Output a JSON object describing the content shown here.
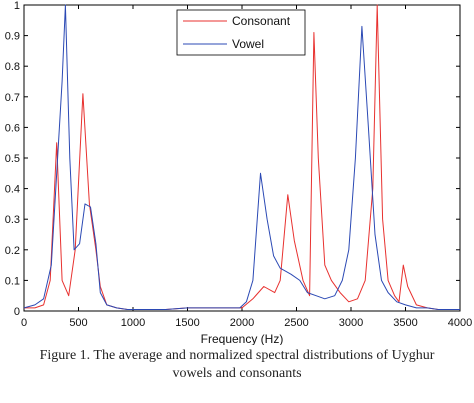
{
  "chart_data": {
    "type": "line",
    "title": "",
    "xlabel": "Frequency (Hz)",
    "ylabel": "",
    "xlim": [
      0,
      4000
    ],
    "ylim": [
      0,
      1
    ],
    "x_ticks": [
      "0",
      "500",
      "1000",
      "1500",
      "2000",
      "2500",
      "3000",
      "3500",
      "4000"
    ],
    "y_ticks": [
      "0",
      "0.1",
      "0.2",
      "0.3",
      "0.4",
      "0.5",
      "0.6",
      "0.7",
      "0.8",
      "0.9",
      "1"
    ],
    "legend_position": "top-center",
    "grid": false,
    "series": [
      {
        "name": "Consonant",
        "color": "#e8312f",
        "points": [
          [
            0,
            0.01
          ],
          [
            100,
            0.01
          ],
          [
            180,
            0.02
          ],
          [
            240,
            0.1
          ],
          [
            300,
            0.55
          ],
          [
            350,
            0.1
          ],
          [
            410,
            0.05
          ],
          [
            470,
            0.2
          ],
          [
            540,
            0.71
          ],
          [
            600,
            0.35
          ],
          [
            660,
            0.2
          ],
          [
            700,
            0.08
          ],
          [
            760,
            0.02
          ],
          [
            850,
            0.01
          ],
          [
            950,
            0.005
          ],
          [
            1100,
            0.005
          ],
          [
            1300,
            0.005
          ],
          [
            1500,
            0.01
          ],
          [
            1600,
            0.01
          ],
          [
            1700,
            0.01
          ],
          [
            1800,
            0.01
          ],
          [
            1900,
            0.01
          ],
          [
            2000,
            0.01
          ],
          [
            2100,
            0.04
          ],
          [
            2200,
            0.08
          ],
          [
            2300,
            0.06
          ],
          [
            2350,
            0.1
          ],
          [
            2420,
            0.38
          ],
          [
            2480,
            0.23
          ],
          [
            2560,
            0.1
          ],
          [
            2620,
            0.05
          ],
          [
            2660,
            0.91
          ],
          [
            2700,
            0.5
          ],
          [
            2760,
            0.15
          ],
          [
            2820,
            0.1
          ],
          [
            2900,
            0.06
          ],
          [
            2980,
            0.03
          ],
          [
            3060,
            0.04
          ],
          [
            3130,
            0.1
          ],
          [
            3200,
            0.4
          ],
          [
            3240,
            1.0
          ],
          [
            3290,
            0.3
          ],
          [
            3340,
            0.1
          ],
          [
            3400,
            0.05
          ],
          [
            3440,
            0.03
          ],
          [
            3480,
            0.15
          ],
          [
            3520,
            0.08
          ],
          [
            3600,
            0.02
          ],
          [
            3700,
            0.01
          ],
          [
            3800,
            0.005
          ],
          [
            3900,
            0.005
          ],
          [
            4000,
            0.005
          ]
        ]
      },
      {
        "name": "Vowel",
        "color": "#2b49b4",
        "points": [
          [
            0,
            0.01
          ],
          [
            100,
            0.02
          ],
          [
            180,
            0.04
          ],
          [
            250,
            0.15
          ],
          [
            300,
            0.45
          ],
          [
            350,
            0.75
          ],
          [
            380,
            1.0
          ],
          [
            420,
            0.5
          ],
          [
            460,
            0.2
          ],
          [
            510,
            0.22
          ],
          [
            560,
            0.35
          ],
          [
            610,
            0.34
          ],
          [
            660,
            0.22
          ],
          [
            700,
            0.06
          ],
          [
            760,
            0.02
          ],
          [
            850,
            0.01
          ],
          [
            950,
            0.005
          ],
          [
            1100,
            0.005
          ],
          [
            1300,
            0.005
          ],
          [
            1500,
            0.01
          ],
          [
            1600,
            0.01
          ],
          [
            1700,
            0.01
          ],
          [
            1800,
            0.01
          ],
          [
            1900,
            0.01
          ],
          [
            1980,
            0.01
          ],
          [
            2040,
            0.03
          ],
          [
            2100,
            0.1
          ],
          [
            2170,
            0.45
          ],
          [
            2230,
            0.3
          ],
          [
            2290,
            0.18
          ],
          [
            2350,
            0.14
          ],
          [
            2400,
            0.13
          ],
          [
            2450,
            0.12
          ],
          [
            2530,
            0.1
          ],
          [
            2600,
            0.06
          ],
          [
            2680,
            0.05
          ],
          [
            2760,
            0.04
          ],
          [
            2850,
            0.05
          ],
          [
            2920,
            0.1
          ],
          [
            2980,
            0.2
          ],
          [
            3040,
            0.5
          ],
          [
            3100,
            0.93
          ],
          [
            3160,
            0.6
          ],
          [
            3220,
            0.25
          ],
          [
            3280,
            0.1
          ],
          [
            3340,
            0.06
          ],
          [
            3420,
            0.03
          ],
          [
            3500,
            0.02
          ],
          [
            3600,
            0.01
          ],
          [
            3700,
            0.01
          ],
          [
            3800,
            0.005
          ],
          [
            4000,
            0.005
          ]
        ]
      }
    ]
  },
  "caption": {
    "line1": "Figure 1.    The average and normalized spectral distributions of Uyghur",
    "line2": "vowels and consonants"
  }
}
